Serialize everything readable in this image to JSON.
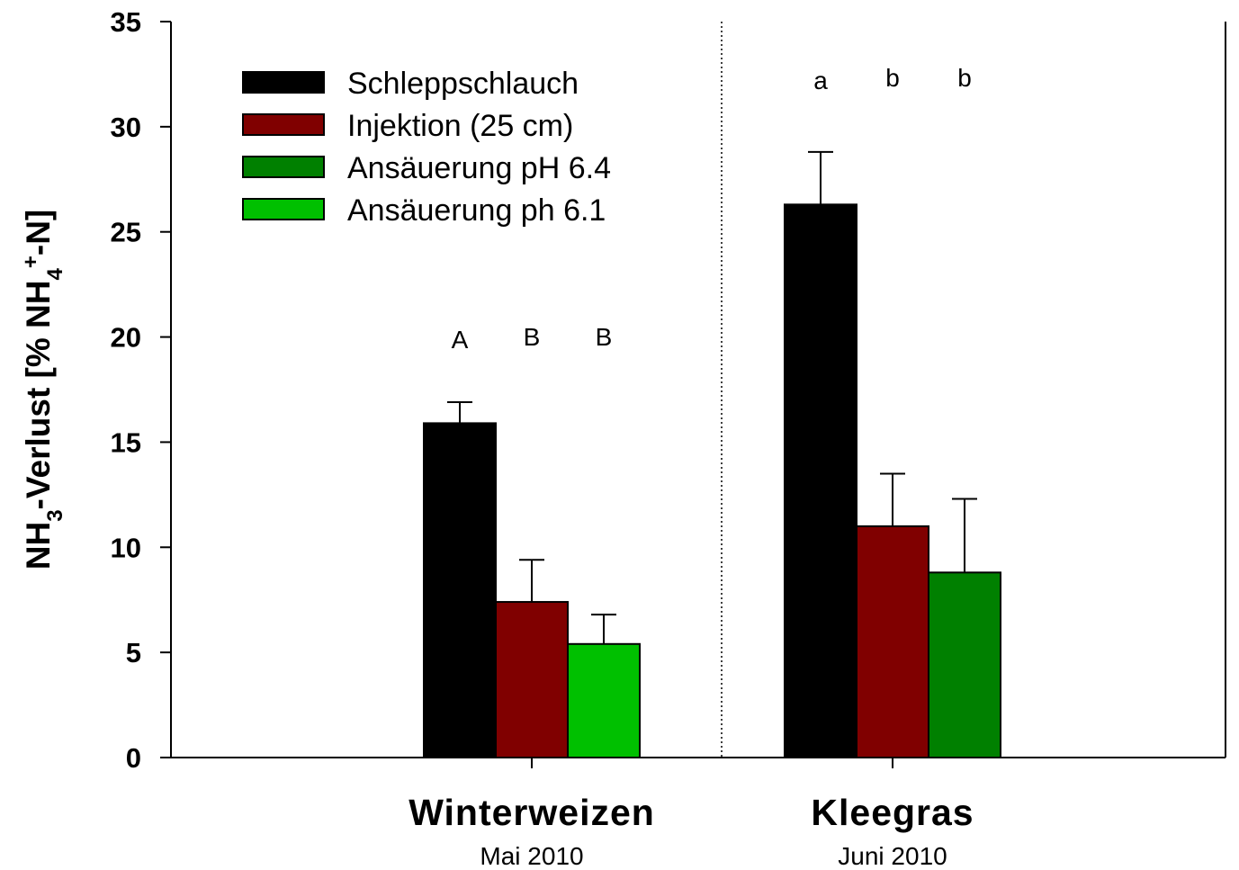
{
  "chart_data": {
    "type": "bar",
    "ylabel": {
      "parts": [
        {
          "text": "NH",
          "sub": false,
          "sup": false
        },
        {
          "text": "3",
          "sub": true,
          "sup": false
        },
        {
          "text": "-Verlust [% NH",
          "sub": false,
          "sup": false
        },
        {
          "text": "4",
          "sub": true,
          "sup": false
        },
        {
          "text": "+",
          "sub": false,
          "sup": true
        },
        {
          "text": "-N]",
          "sub": false,
          "sup": false
        }
      ]
    },
    "ylim": [
      0,
      35
    ],
    "yticks": [
      0,
      5,
      10,
      15,
      20,
      25,
      30,
      35
    ],
    "grid": false,
    "legend_position": "top-left",
    "series": [
      {
        "name": "Schleppschlauch",
        "color": "#000000"
      },
      {
        "name": "Injektion (25 cm)",
        "color": "#800000"
      },
      {
        "name": "Ansäuerung pH 6.4",
        "color": "#008000"
      },
      {
        "name": "Ansäuerung ph 6.1",
        "color": "#00c000"
      }
    ],
    "groups": [
      {
        "name": "Winterweizen",
        "subtitle": "Mai 2010",
        "bars": [
          {
            "series": 0,
            "value": 15.9,
            "error": 1.0,
            "letter": "A"
          },
          {
            "series": 1,
            "value": 7.4,
            "error": 2.0,
            "letter": "B"
          },
          {
            "series": 3,
            "value": 5.4,
            "error": 1.4,
            "letter": "B"
          }
        ]
      },
      {
        "name": "Kleegras",
        "subtitle": "Juni 2010",
        "bars": [
          {
            "series": 0,
            "value": 26.3,
            "error": 2.5,
            "letter": "a"
          },
          {
            "series": 1,
            "value": 11.0,
            "error": 2.5,
            "letter": "b"
          },
          {
            "series": 2,
            "value": 8.8,
            "error": 3.5,
            "letter": "b"
          }
        ]
      }
    ]
  }
}
